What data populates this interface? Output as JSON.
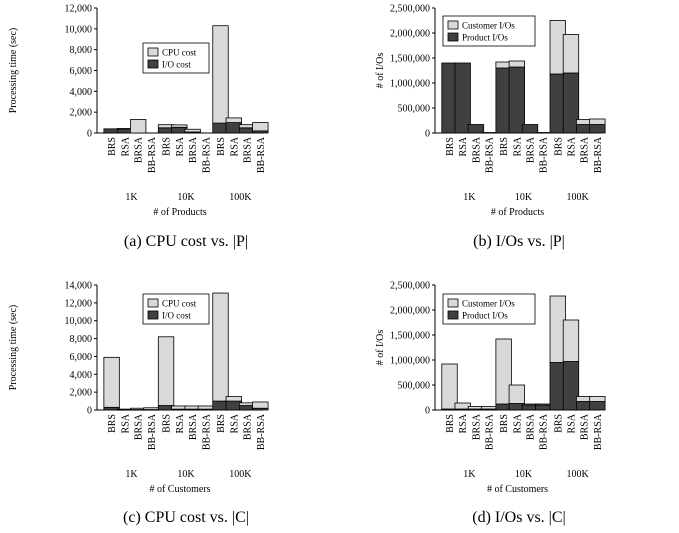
{
  "colors": {
    "cpu": "#d9d9d9",
    "io": "#404040",
    "stroke": "#000000"
  },
  "chart_data": [
    {
      "type": "bar",
      "stacked": true,
      "caption": "(a) CPU cost vs. |P|",
      "ylabel": "Processing time (sec)",
      "xlabel": "# of Products",
      "ylim": [
        0,
        12000
      ],
      "yticks": [
        "0",
        "2,000",
        "4,000",
        "6,000",
        "8,000",
        "10,000",
        "12,000"
      ],
      "groups": [
        "1K",
        "10K",
        "100K"
      ],
      "categories": [
        "BRS",
        "RSA",
        "BRSA",
        "BB-RSA"
      ],
      "legend": {
        "position": "upper-middle",
        "entries": [
          "CPU cost",
          "I/O cost"
        ]
      },
      "series": [
        {
          "name": "I/O cost",
          "color": "io",
          "values": [
            [
              400,
              400,
              0,
              0
            ],
            [
              500,
              550,
              100,
              0
            ],
            [
              950,
              1000,
              500,
              200
            ]
          ]
        },
        {
          "name": "CPU cost",
          "color": "cpu",
          "values": [
            [
              0,
              30,
              1300,
              0
            ],
            [
              300,
              230,
              260,
              0
            ],
            [
              9350,
              450,
              300,
              800
            ]
          ]
        }
      ]
    },
    {
      "type": "bar",
      "stacked": true,
      "caption": "(b) I/Os vs. |P|",
      "ylabel": "# of I/Os",
      "xlabel": "# of Products",
      "ylim": [
        0,
        2500000
      ],
      "yticks": [
        "0",
        "500,000",
        "1,000,000",
        "1,500,000",
        "2,000,000",
        "2,500,000"
      ],
      "groups": [
        "1K",
        "10K",
        "100K"
      ],
      "categories": [
        "BRS",
        "RSA",
        "BRSA",
        "BB-RSA"
      ],
      "legend": {
        "position": "top-left",
        "entries": [
          "Customer I/Os",
          "Product I/Os"
        ]
      },
      "series": [
        {
          "name": "Product I/Os",
          "color": "io",
          "values": [
            [
              1400000,
              1400000,
              170000,
              10000
            ],
            [
              1300000,
              1320000,
              170000,
              10000
            ],
            [
              1180000,
              1200000,
              170000,
              170000
            ]
          ]
        },
        {
          "name": "Customer I/Os",
          "color": "cpu",
          "values": [
            [
              0,
              0,
              0,
              0
            ],
            [
              120000,
              120000,
              0,
              0
            ],
            [
              1070000,
              770000,
              100000,
              110000
            ]
          ]
        }
      ]
    },
    {
      "type": "bar",
      "stacked": true,
      "caption": "(c) CPU cost vs. |C|",
      "ylabel": "Processing time (sec)",
      "xlabel": "# of Customers",
      "ylim": [
        0,
        14000
      ],
      "yticks": [
        "0",
        "2,000",
        "4,000",
        "6,000",
        "8,000",
        "10,000",
        "12,000",
        "14,000"
      ],
      "groups": [
        "1K",
        "10K",
        "100K"
      ],
      "categories": [
        "BRS",
        "RSA",
        "BRSA",
        "BB-RSA"
      ],
      "legend": {
        "position": "upper-middle",
        "entries": [
          "CPU cost",
          "I/O cost"
        ]
      },
      "series": [
        {
          "name": "I/O cost",
          "color": "io",
          "values": [
            [
              300,
              50,
              50,
              50
            ],
            [
              500,
              100,
              100,
              100
            ],
            [
              1000,
              1000,
              500,
              200
            ]
          ]
        },
        {
          "name": "CPU cost",
          "color": "cpu",
          "values": [
            [
              5600,
              50,
              150,
              200
            ],
            [
              7700,
              350,
              350,
              350
            ],
            [
              12100,
              500,
              300,
              700
            ]
          ]
        }
      ]
    },
    {
      "type": "bar",
      "stacked": true,
      "caption": "(d) I/Os vs. |C|",
      "ylabel": "# of I/Os",
      "xlabel": "# of Customers",
      "ylim": [
        0,
        2500000
      ],
      "yticks": [
        "0",
        "500,000",
        "1,000,000",
        "1,500,000",
        "2,000,000",
        "2,500,000"
      ],
      "groups": [
        "1K",
        "10K",
        "100K"
      ],
      "categories": [
        "BRS",
        "RSA",
        "BRSA",
        "BB-RSA"
      ],
      "legend": {
        "position": "top-left",
        "entries": [
          "Customer I/Os",
          "Product I/Os"
        ]
      },
      "series": [
        {
          "name": "Product I/Os",
          "color": "io",
          "values": [
            [
              20000,
              20000,
              20000,
              20000
            ],
            [
              120000,
              130000,
              100000,
              100000
            ],
            [
              950000,
              970000,
              170000,
              170000
            ]
          ]
        },
        {
          "name": "Customer I/Os",
          "color": "cpu",
          "values": [
            [
              900000,
              120000,
              50000,
              50000
            ],
            [
              1300000,
              370000,
              20000,
              20000
            ],
            [
              1330000,
              830000,
              100000,
              100000
            ]
          ]
        }
      ]
    }
  ]
}
